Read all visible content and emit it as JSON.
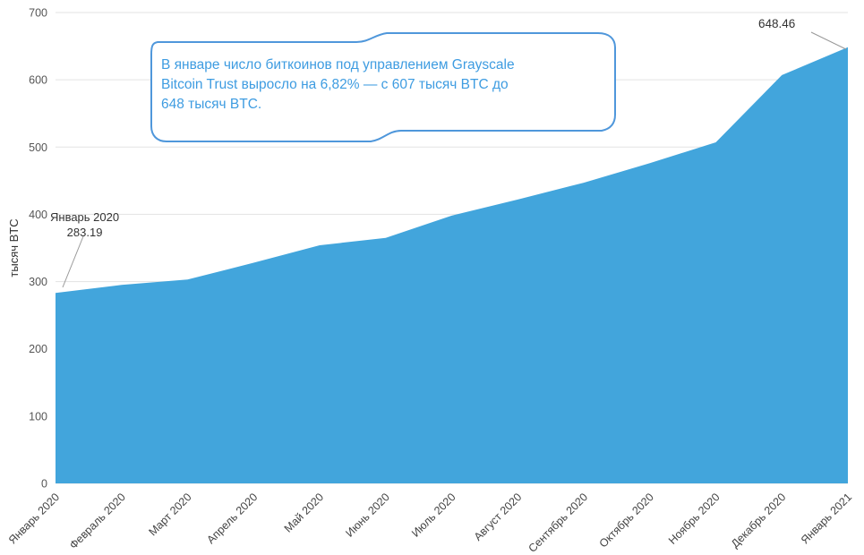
{
  "chart_data": {
    "type": "area",
    "title": "",
    "ylabel": "тысяч BTC",
    "xlabel": "",
    "categories": [
      "Январь 2020",
      "Февраль 2020",
      "Март 2020",
      "Апрель 2020",
      "Май 2020",
      "Июнь 2020",
      "Июль 2020",
      "Август 2020",
      "Сентябрь 2020",
      "Октябрь 2020",
      "Ноябрь 2020",
      "Декабрь 2020",
      "Январь 2021"
    ],
    "values": [
      283.19,
      295,
      303,
      328,
      354,
      365,
      398,
      422,
      447,
      476,
      507,
      607,
      648.46
    ],
    "ylim": [
      0,
      700
    ],
    "yticks": [
      0,
      100,
      200,
      300,
      400,
      500,
      600,
      700
    ],
    "grid": true,
    "legend": "none",
    "area_color": "#42a5dc",
    "grid_color": "#e3e3e3",
    "first_point_label": {
      "line1": "Январь 2020",
      "line2": "283.19"
    },
    "last_point_label": "648.46"
  },
  "annotation": {
    "lines": [
      "В январе число биткоинов под управлением Grayscale",
      "Bitcoin Trust выросло на 6,82% — с 607 тысяч BTC до",
      "648 тысяч BTC."
    ],
    "text_color": "#3e9ce1",
    "border_color": "#4f97db"
  }
}
